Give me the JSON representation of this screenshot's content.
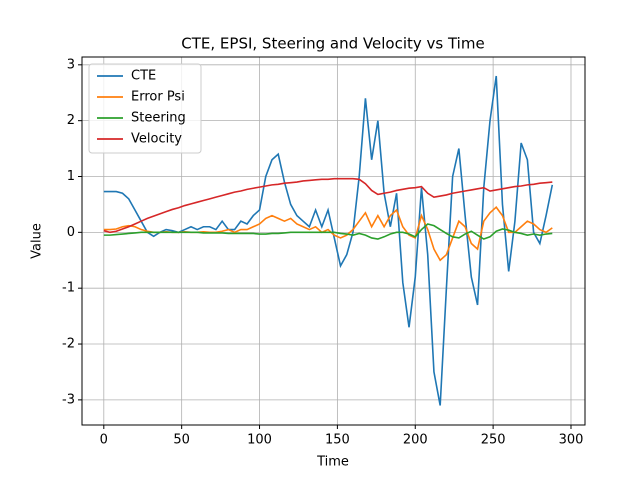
{
  "chart_data": {
    "type": "line",
    "title": "CTE, EPSI, Steering and Velocity vs Time",
    "x_label": "Time",
    "y_label": "Value",
    "x": [
      0,
      4,
      8,
      12,
      16,
      20,
      24,
      28,
      32,
      36,
      40,
      44,
      48,
      52,
      56,
      60,
      64,
      68,
      72,
      76,
      80,
      84,
      88,
      92,
      96,
      100,
      104,
      108,
      112,
      116,
      120,
      124,
      128,
      132,
      136,
      140,
      144,
      148,
      152,
      156,
      160,
      164,
      168,
      172,
      176,
      180,
      184,
      188,
      192,
      196,
      200,
      204,
      208,
      212,
      216,
      220,
      224,
      228,
      232,
      236,
      240,
      244,
      248,
      252,
      256,
      260,
      264,
      268,
      272,
      276,
      280,
      284,
      288
    ],
    "series": [
      {
        "name": "CTE",
        "color": "#1f77b4",
        "values": [
          0.73,
          0.73,
          0.73,
          0.7,
          0.6,
          0.4,
          0.2,
          0.0,
          -0.07,
          0.0,
          0.05,
          0.03,
          0.0,
          0.05,
          0.1,
          0.05,
          0.1,
          0.1,
          0.05,
          0.2,
          0.05,
          0.05,
          0.2,
          0.15,
          0.3,
          0.4,
          1.0,
          1.3,
          1.4,
          0.9,
          0.5,
          0.3,
          0.2,
          0.1,
          0.4,
          0.1,
          0.4,
          -0.1,
          -0.6,
          -0.4,
          0.0,
          1.0,
          2.4,
          1.3,
          2.0,
          0.7,
          0.1,
          0.7,
          -0.9,
          -1.7,
          -0.8,
          0.8,
          -0.4,
          -2.5,
          -3.1,
          -1.0,
          1.0,
          1.5,
          0.3,
          -0.8,
          -1.3,
          0.8,
          2.0,
          2.8,
          0.5,
          -0.7,
          0.2,
          1.6,
          1.3,
          0.0,
          -0.2,
          0.3,
          0.85
        ]
      },
      {
        "name": "Error Psi",
        "color": "#ff7f0e",
        "values": [
          0.05,
          0.05,
          0.06,
          0.1,
          0.12,
          0.1,
          0.05,
          0.02,
          0.0,
          0.0,
          0.01,
          0.0,
          0.0,
          0.01,
          0.0,
          0.0,
          0.01,
          0.0,
          0.0,
          0.02,
          0.05,
          0.0,
          0.05,
          0.05,
          0.1,
          0.15,
          0.25,
          0.3,
          0.25,
          0.2,
          0.25,
          0.15,
          0.1,
          0.05,
          0.1,
          0.0,
          0.05,
          -0.05,
          -0.1,
          -0.05,
          0.05,
          0.2,
          0.35,
          0.1,
          0.3,
          0.1,
          0.3,
          0.4,
          0.1,
          -0.05,
          -0.1,
          0.3,
          0.05,
          -0.3,
          -0.5,
          -0.4,
          -0.1,
          0.2,
          0.1,
          -0.2,
          -0.3,
          0.2,
          0.35,
          0.45,
          0.3,
          0.0,
          0.0,
          0.1,
          0.2,
          0.15,
          0.05,
          0.0,
          0.08
        ]
      },
      {
        "name": "Steering",
        "color": "#2ca02c",
        "values": [
          -0.05,
          -0.05,
          -0.04,
          -0.03,
          -0.02,
          -0.01,
          0.0,
          0.0,
          0.0,
          0.0,
          0.0,
          0.0,
          0.0,
          0.0,
          0.0,
          0.0,
          -0.01,
          -0.01,
          -0.01,
          -0.01,
          -0.02,
          -0.02,
          -0.02,
          -0.02,
          -0.02,
          -0.03,
          -0.03,
          -0.02,
          -0.02,
          -0.01,
          0.0,
          0.0,
          0.0,
          0.0,
          0.0,
          0.0,
          0.0,
          0.0,
          -0.02,
          -0.03,
          -0.05,
          -0.02,
          -0.05,
          -0.1,
          -0.12,
          -0.08,
          -0.03,
          0.0,
          0.0,
          -0.03,
          -0.08,
          0.05,
          0.15,
          0.12,
          0.05,
          -0.02,
          -0.08,
          -0.1,
          -0.03,
          0.02,
          -0.05,
          -0.12,
          -0.08,
          0.02,
          0.06,
          0.04,
          0.0,
          -0.02,
          -0.05,
          -0.03,
          -0.05,
          -0.03,
          -0.02
        ]
      },
      {
        "name": "Velocity",
        "color": "#d62728",
        "values": [
          0.03,
          0.0,
          0.02,
          0.06,
          0.1,
          0.15,
          0.2,
          0.25,
          0.29,
          0.33,
          0.37,
          0.41,
          0.44,
          0.48,
          0.51,
          0.54,
          0.57,
          0.6,
          0.63,
          0.66,
          0.69,
          0.72,
          0.74,
          0.77,
          0.79,
          0.81,
          0.83,
          0.85,
          0.86,
          0.88,
          0.89,
          0.9,
          0.92,
          0.93,
          0.94,
          0.95,
          0.95,
          0.96,
          0.96,
          0.96,
          0.96,
          0.95,
          0.87,
          0.75,
          0.68,
          0.7,
          0.72,
          0.75,
          0.77,
          0.79,
          0.8,
          0.82,
          0.7,
          0.63,
          0.65,
          0.67,
          0.7,
          0.72,
          0.74,
          0.76,
          0.78,
          0.8,
          0.74,
          0.76,
          0.78,
          0.8,
          0.82,
          0.83,
          0.85,
          0.86,
          0.88,
          0.89,
          0.9
        ]
      }
    ],
    "xlim": [
      -14,
      309
    ],
    "ylim": [
      -3.45,
      3.14
    ],
    "xticks": [
      0,
      50,
      100,
      150,
      200,
      250,
      300
    ],
    "yticks": [
      -3,
      -2,
      -1,
      0,
      1,
      2,
      3
    ],
    "grid": true,
    "legend": "upper-left"
  }
}
